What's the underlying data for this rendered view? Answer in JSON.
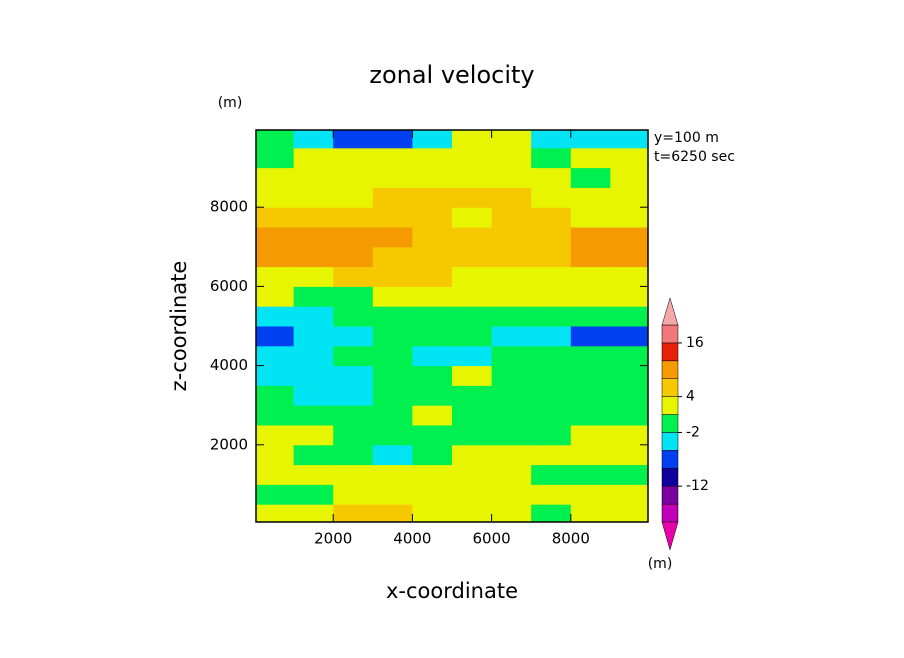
{
  "chart_data": {
    "type": "contour",
    "title": "zonal velocity",
    "x_label": "x-coordinate",
    "y_label": "z-coordinate",
    "x_unit": "(m)",
    "y_unit": "(m)",
    "annotations": [
      "y=100 m",
      "t=6250 sec"
    ],
    "xlim": [
      50,
      9950
    ],
    "ylim": [
      50,
      9950
    ],
    "xticks": [
      2000,
      4000,
      6000,
      8000
    ],
    "yticks": [
      2000,
      4000,
      6000,
      8000
    ],
    "x": [
      500,
      1500,
      2500,
      3500,
      4500,
      5500,
      6500,
      7500,
      8500,
      9500
    ],
    "y": [
      250,
      750,
      1250,
      1750,
      2250,
      2750,
      3250,
      3750,
      4250,
      4750,
      5250,
      5750,
      6250,
      6750,
      7250,
      7750,
      8250,
      8750,
      9250,
      9750
    ],
    "z": [
      [
        3,
        3,
        6,
        6,
        3,
        3,
        3,
        0,
        3,
        3
      ],
      [
        0,
        0,
        3,
        3,
        3,
        3,
        3,
        3,
        3,
        3
      ],
      [
        3,
        3,
        3,
        3,
        3,
        3,
        3,
        0,
        0,
        0
      ],
      [
        3,
        0,
        0,
        -3,
        0,
        3,
        3,
        3,
        3,
        3
      ],
      [
        3,
        3,
        0,
        0,
        0,
        0,
        0,
        0,
        3,
        3
      ],
      [
        0,
        0,
        0,
        0,
        3,
        0,
        0,
        0,
        0,
        0
      ],
      [
        0,
        -3,
        -3,
        0,
        0,
        0,
        0,
        0,
        0,
        0
      ],
      [
        -3,
        -3,
        -3,
        0,
        0,
        3,
        0,
        0,
        0,
        0
      ],
      [
        -3,
        -3,
        0,
        0,
        -3,
        -3,
        0,
        0,
        0,
        0
      ],
      [
        -6,
        -3,
        -3,
        0,
        0,
        0,
        -3,
        -3,
        -6,
        -6
      ],
      [
        -3,
        -3,
        0,
        0,
        0,
        0,
        0,
        0,
        0,
        0
      ],
      [
        3,
        0,
        0,
        3,
        3,
        3,
        3,
        3,
        3,
        3
      ],
      [
        3,
        3,
        6,
        6,
        6,
        3,
        3,
        3,
        3,
        3
      ],
      [
        10,
        10,
        10,
        6,
        6,
        6,
        6,
        6,
        10,
        10
      ],
      [
        10,
        10,
        10,
        10,
        6,
        6,
        6,
        6,
        10,
        10
      ],
      [
        6,
        6,
        6,
        6,
        6,
        3,
        6,
        6,
        3,
        3
      ],
      [
        3,
        3,
        3,
        6,
        6,
        6,
        6,
        3,
        3,
        3
      ],
      [
        3,
        3,
        3,
        3,
        3,
        3,
        3,
        3,
        0,
        3
      ],
      [
        0,
        3,
        3,
        3,
        3,
        3,
        3,
        0,
        3,
        3
      ],
      [
        0,
        -3,
        -6,
        -6,
        -3,
        3,
        3,
        -3,
        -3,
        -3
      ]
    ],
    "levels": [
      -20,
      -16,
      -12,
      -8,
      -4,
      -2,
      2,
      4,
      8,
      12,
      16,
      20
    ],
    "colors": [
      "#e800a8",
      "#c000b8",
      "#7a00a0",
      "#10009c",
      "#0040f0",
      "#00e4f4",
      "#00f050",
      "#e8f500",
      "#f5c800",
      "#f59a00",
      "#e8200a",
      "#f07878",
      "#f4a8a8"
    ],
    "colorbar_ticks": [
      16,
      4,
      -2,
      -12
    ]
  }
}
